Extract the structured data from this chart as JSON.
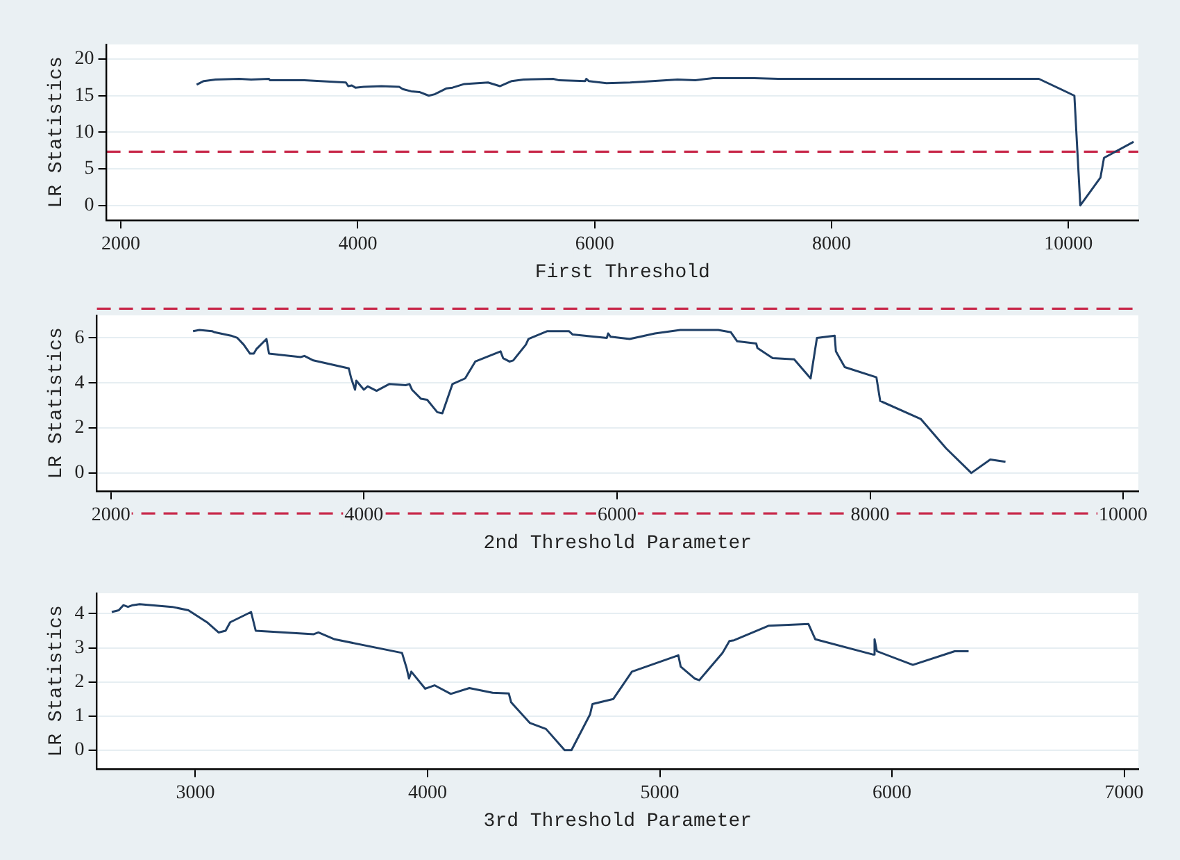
{
  "chart_data": [
    {
      "type": "line",
      "xlabel": "First Threshold",
      "ylabel": "LR Statistics",
      "xlim": [
        1880,
        10590
      ],
      "ylim": [
        -2,
        22
      ],
      "xticks": [
        2000,
        4000,
        6000,
        8000,
        10000
      ],
      "yticks": [
        0,
        5,
        10,
        15,
        20
      ],
      "grid": "y",
      "ref_lines": [
        {
          "axis": "y",
          "value": 7.35,
          "color": "#c8284a",
          "line_style": "dashed"
        }
      ],
      "series": [
        {
          "color": "#1f3f66",
          "x": [
            2640,
            2700,
            2800,
            3000,
            3100,
            3250,
            3260,
            3550,
            3900,
            3920,
            3950,
            3980,
            4050,
            4200,
            4350,
            4380,
            4450,
            4520,
            4600,
            4650,
            4750,
            4800,
            4900,
            5100,
            5200,
            5300,
            5400,
            5650,
            5700,
            5920,
            5930,
            5950,
            6100,
            6300,
            6700,
            6850,
            7000,
            7350,
            7550,
            9750,
            10050,
            10100,
            10270,
            10300,
            10550
          ],
          "values": [
            16.5,
            17,
            17.2,
            17.3,
            17.2,
            17.3,
            17.1,
            17.1,
            16.8,
            16.3,
            16.4,
            16.1,
            16.2,
            16.3,
            16.2,
            15.9,
            15.6,
            15.5,
            15,
            15.2,
            16,
            16.1,
            16.6,
            16.8,
            16.3,
            17,
            17.2,
            17.3,
            17.1,
            17,
            17.3,
            17,
            16.7,
            16.8,
            17.2,
            17.1,
            17.4,
            17.4,
            17.3,
            17.3,
            15,
            0,
            3.8,
            6.5,
            8.7
          ]
        }
      ]
    },
    {
      "type": "line",
      "xlabel": "2nd Threshold Parameter",
      "ylabel": "LR Statistics",
      "xlim": [
        1890,
        10120
      ],
      "ylim": [
        -0.8,
        7
      ],
      "xticks": [
        2000,
        4000,
        6000,
        8000,
        10000
      ],
      "yticks": [
        0,
        2,
        4,
        6
      ],
      "grid": "y",
      "ref_lines": [
        {
          "axis": "y",
          "value": 7.3,
          "color": "#c8284a",
          "line_style": "dashed"
        },
        {
          "axis": "y",
          "value": -1.8,
          "color": "#c8284a",
          "line_style": "dashed"
        }
      ],
      "series": [
        {
          "color": "#1f3f66",
          "x": [
            2650,
            2700,
            2800,
            2820,
            2950,
            3000,
            3050,
            3100,
            3130,
            3150,
            3230,
            3250,
            3500,
            3530,
            3600,
            3880,
            3900,
            3930,
            3940,
            4000,
            4030,
            4100,
            4200,
            4330,
            4360,
            4380,
            4450,
            4500,
            4580,
            4620,
            4700,
            4800,
            4880,
            5080,
            5100,
            5150,
            5180,
            5280,
            5300,
            5450,
            5620,
            5650,
            5920,
            5930,
            5950,
            6100,
            6300,
            6500,
            6800,
            6900,
            6950,
            7100,
            7110,
            7230,
            7400,
            7530,
            7580,
            7720,
            7730,
            7800,
            8050,
            8080,
            8400,
            8600,
            8800,
            8950,
            9070
          ],
          "values": [
            6.3,
            6.35,
            6.3,
            6.25,
            6.1,
            6,
            5.7,
            5.3,
            5.3,
            5.5,
            5.95,
            5.3,
            5.15,
            5.2,
            5,
            4.65,
            4.2,
            3.7,
            4.1,
            3.7,
            3.85,
            3.65,
            3.95,
            3.9,
            3.95,
            3.7,
            3.3,
            3.25,
            2.7,
            2.65,
            3.95,
            4.2,
            4.95,
            5.4,
            5.1,
            4.95,
            5,
            5.7,
            5.95,
            6.3,
            6.3,
            6.15,
            6,
            6.2,
            6.05,
            5.95,
            6.2,
            6.35,
            6.35,
            6.25,
            5.85,
            5.75,
            5.55,
            5.1,
            5.05,
            4.2,
            6,
            6.1,
            5.4,
            4.7,
            4.25,
            3.2,
            2.4,
            1.1,
            0,
            0.6,
            0.5
          ]
        }
      ]
    },
    {
      "type": "line",
      "xlabel": "3rd Threshold Parameter",
      "ylabel": "LR Statistics",
      "xlim": [
        2576,
        7061
      ],
      "ylim": [
        -0.55,
        4.6
      ],
      "xticks": [
        3000,
        4000,
        5000,
        6000,
        7000
      ],
      "yticks": [
        0,
        1,
        2,
        3,
        4
      ],
      "grid": "y",
      "series": [
        {
          "color": "#1f3f66",
          "x": [
            2640,
            2670,
            2690,
            2710,
            2730,
            2760,
            2900,
            2970,
            3050,
            3100,
            3130,
            3150,
            3240,
            3260,
            3510,
            3530,
            3600,
            3890,
            3910,
            3920,
            3930,
            3990,
            4030,
            4100,
            4180,
            4280,
            4350,
            4360,
            4440,
            4510,
            4590,
            4620,
            4700,
            4710,
            4800,
            4880,
            5080,
            5090,
            5150,
            5170,
            5270,
            5300,
            5320,
            5470,
            5640,
            5670,
            5920,
            5925,
            5935,
            6090,
            6270,
            6330
          ],
          "values": [
            4.05,
            4.1,
            4.25,
            4.2,
            4.25,
            4.28,
            4.2,
            4.1,
            3.75,
            3.45,
            3.5,
            3.75,
            4.05,
            3.5,
            3.4,
            3.45,
            3.25,
            2.85,
            2.4,
            2.1,
            2.3,
            1.8,
            1.9,
            1.65,
            1.82,
            1.68,
            1.66,
            1.4,
            0.8,
            0.62,
            0,
            0,
            1.05,
            1.35,
            1.5,
            2.3,
            2.78,
            2.45,
            2.1,
            2.05,
            2.85,
            3.2,
            3.22,
            3.65,
            3.7,
            3.25,
            2.8,
            3.25,
            2.9,
            2.5,
            2.9,
            2.9
          ]
        }
      ]
    }
  ]
}
